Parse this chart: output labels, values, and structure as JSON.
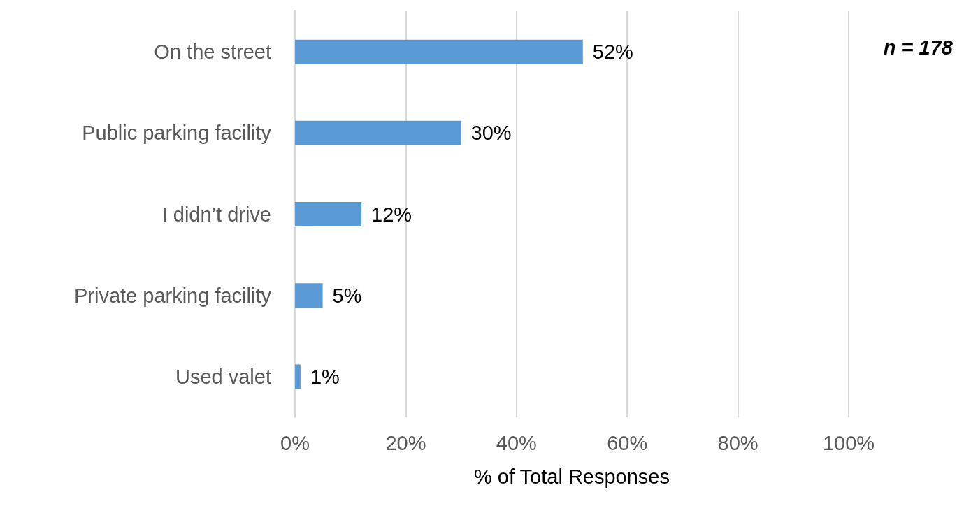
{
  "chart_data": {
    "type": "bar",
    "orientation": "horizontal",
    "xlabel": "% of Total Responses",
    "categories": [
      "On the street",
      "Public parking facility",
      "I didn’t drive",
      "Private parking facility",
      "Used valet"
    ],
    "values": [
      52,
      30,
      12,
      5,
      1
    ],
    "value_labels": [
      "52%",
      "30%",
      "12%",
      "5%",
      "1%"
    ],
    "color": "#5b9bd5",
    "xlim": [
      0,
      100
    ],
    "xticks": [
      {
        "value": 0,
        "label": "0%"
      },
      {
        "value": 20,
        "label": "20%"
      },
      {
        "value": 40,
        "label": "40%"
      },
      {
        "value": 60,
        "label": "60%"
      },
      {
        "value": 80,
        "label": "80%"
      },
      {
        "value": 100,
        "label": "100%"
      }
    ],
    "grid": "x",
    "annotations": [
      "n = 178"
    ]
  }
}
